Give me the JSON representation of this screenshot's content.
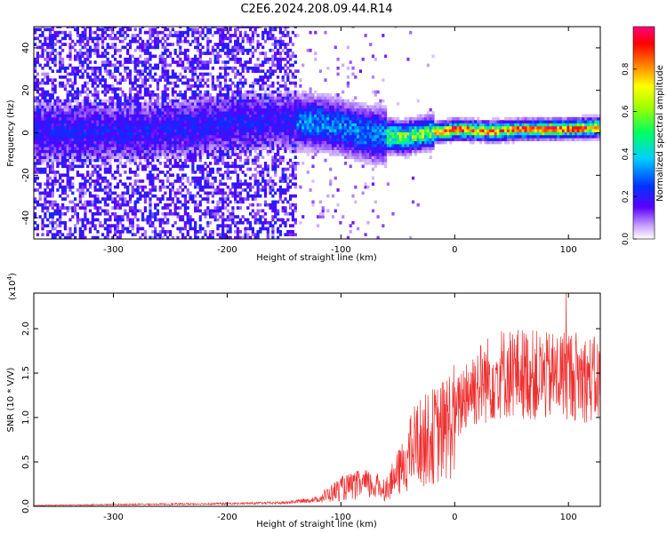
{
  "figure_title": "C2E6.2024.208.09.44.R14",
  "chart_data": [
    {
      "type": "heatmap",
      "xlabel": "Height of straight line (km)",
      "ylabel": "Frequency (Hz)",
      "xlim": [
        -370,
        128
      ],
      "ylim": [
        -50,
        50
      ],
      "xticks": [
        -300,
        -200,
        -100,
        0,
        100
      ],
      "yticks": [
        -40,
        -20,
        0,
        20,
        40
      ],
      "colorbar": {
        "label": "Normalized spectral amplitude",
        "range": [
          0,
          1
        ],
        "ticks": [
          0.0,
          0.2,
          0.4,
          0.6,
          0.8
        ],
        "tick_labels": [
          "0.0",
          "0.2",
          "0.4",
          "0.6",
          "0.8"
        ]
      },
      "ridge": {
        "description_free": true,
        "points": [
          {
            "x": -300,
            "y": 0
          },
          {
            "x": -250,
            "y": 1
          },
          {
            "x": -200,
            "y": 4
          },
          {
            "x": -150,
            "y": 5
          },
          {
            "x": -120,
            "y": 4
          },
          {
            "x": -100,
            "y": 2
          },
          {
            "x": -80,
            "y": -1
          },
          {
            "x": -60,
            "y": -2
          },
          {
            "x": -45,
            "y": -3
          },
          {
            "x": -30,
            "y": -1
          },
          {
            "x": -10,
            "y": 0
          },
          {
            "x": 0,
            "y": 1
          },
          {
            "x": 30,
            "y": 0
          },
          {
            "x": 60,
            "y": 1
          },
          {
            "x": 90,
            "y": 1
          },
          {
            "x": 128,
            "y": 2
          }
        ]
      }
    },
    {
      "type": "line",
      "xlabel": "Height of straight line (km)",
      "ylabel": "SNR (10 * V/V)",
      "scale_label_base": "(x10",
      "scale_label_exp": "4",
      "scale_label_end": ")",
      "xlim": [
        -370,
        128
      ],
      "ylim": [
        0,
        2.4
      ],
      "xticks": [
        -300,
        -200,
        -100,
        0,
        100
      ],
      "yticks": [
        0.0,
        0.5,
        1.0,
        1.5,
        2.0
      ],
      "ytick_labels": [
        "0.0",
        "0.5",
        "1.0",
        "1.5",
        "2.0"
      ],
      "color": "#ee3030",
      "envelope": [
        {
          "x": -370,
          "y": 0.01
        },
        {
          "x": -300,
          "y": 0.02
        },
        {
          "x": -200,
          "y": 0.03
        },
        {
          "x": -150,
          "y": 0.04
        },
        {
          "x": -120,
          "y": 0.08
        },
        {
          "x": -100,
          "y": 0.2
        },
        {
          "x": -80,
          "y": 0.25
        },
        {
          "x": -60,
          "y": 0.2
        },
        {
          "x": -45,
          "y": 0.45
        },
        {
          "x": -35,
          "y": 0.7
        },
        {
          "x": -25,
          "y": 0.75
        },
        {
          "x": -10,
          "y": 0.85
        },
        {
          "x": 0,
          "y": 1.0
        },
        {
          "x": 10,
          "y": 1.3
        },
        {
          "x": 25,
          "y": 1.4
        },
        {
          "x": 40,
          "y": 1.5
        },
        {
          "x": 60,
          "y": 1.5
        },
        {
          "x": 80,
          "y": 1.45
        },
        {
          "x": 100,
          "y": 1.5
        },
        {
          "x": 128,
          "y": 1.4
        }
      ],
      "peak": {
        "x": 98,
        "y": 2.4
      }
    }
  ]
}
